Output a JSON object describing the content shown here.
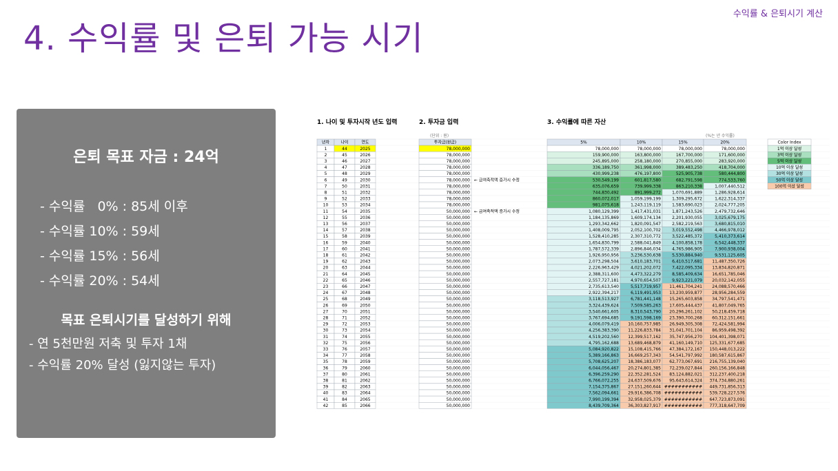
{
  "header": {
    "tag": "수익률 & 은퇴시기 계산"
  },
  "page": {
    "title": "4. 수익률 및 은퇴 가능 시기"
  },
  "summary": {
    "goal": "은퇴 목표 자금 : 24억",
    "rates": [
      "- 수익률   0% : 85세 이후",
      "- 수익률 10% : 59세",
      "- 수익률 15% : 56세",
      "- 수익률 20% : 54세"
    ],
    "action_title": "목표 은퇴시기를 달성하기 위해",
    "actions": [
      "- 연 5천만원 저축 및 투자 1채",
      "- 수익률 20% 달성 (잃지않는 투자)"
    ]
  },
  "sheet": {
    "section1_title": "1. 나이 및 투자시작 년도 입력",
    "section2_title": "2. 투자금 입력",
    "section3_title": "3. 수익률에 따른 자산",
    "unit_note": "(단위 : 원)",
    "rate_note": "(%는 년 수익률)",
    "headers": {
      "year": "년차",
      "age": "나이",
      "calendar": "연도",
      "invest": "투자금(원금)"
    },
    "rate_headers": [
      "5%",
      "10%",
      "15%",
      "20%"
    ],
    "notes": [
      {
        "row": 6,
        "text": "← 급여축적액 증가시 수정"
      },
      {
        "row": 11,
        "text": "← 급여축적액 증가시 수정"
      }
    ],
    "color_index_title": "Color Index",
    "color_index": [
      {
        "label": "1억 이상 달성",
        "color": "#d9f2e3"
      },
      {
        "label": "3억 이상 달성",
        "color": "#a9dfbf"
      },
      {
        "label": "5억 이상 달성",
        "color": "#63be7b"
      },
      {
        "label": "10억 이상 달성",
        "color": "#e3f4f4"
      },
      {
        "label": "30억 이상 달성",
        "color": "#b3e0e0"
      },
      {
        "label": "50억 이상 달성",
        "color": "#7fc8cc"
      },
      {
        "label": "100억 이상 달성",
        "color": "#f8cbad"
      }
    ],
    "start_age": 44,
    "start_year": 2025,
    "invest": [
      "78,000,000",
      "78,000,000",
      "78,000,000",
      "78,000,000",
      "78,000,000",
      "78,000,000",
      "78,000,000",
      "78,000,000",
      "78,000,000",
      "78,000,000",
      "50,000,000",
      "50,000,000",
      "50,000,000",
      "50,000,000",
      "50,000,000",
      "50,000,000",
      "50,000,000",
      "50,000,000",
      "50,000,000",
      "50,000,000",
      "50,000,000",
      "50,000,000",
      "50,000,000",
      "50,000,000",
      "50,000,000",
      "50,000,000",
      "50,000,000",
      "50,000,000",
      "50,000,000",
      "50,000,000",
      "50,000,000",
      "50,000,000",
      "50,000,000",
      "50,000,000",
      "50,000,000",
      "50,000,000",
      "50,000,000",
      "50,000,000",
      "50,000,000",
      "50,000,000",
      "50,000,000",
      "50,000,000"
    ],
    "r5": [
      "78,000,000",
      "159,900,000",
      "245,895,000",
      "336,189,750",
      "430,999,238",
      "530,549,199",
      "635,076,659",
      "744,830,492",
      "860,072,017",
      "981,075,618",
      "1,080,129,399",
      "1,184,135,869",
      "1,293,342,662",
      "1,408,009,795",
      "1,528,410,285",
      "1,654,830,799",
      "1,787,572,339",
      "1,926,950,956",
      "2,073,298,504",
      "2,226,963,429",
      "2,388,311,600",
      "2,557,727,181",
      "2,735,613,540",
      "2,922,394,217",
      "3,118,513,927",
      "3,324,439,624",
      "3,540,661,605",
      "3,767,694,685",
      "4,006,079,419",
      "4,256,383,390",
      "4,519,202,560",
      "4,795,162,688",
      "5,084,920,822",
      "5,389,166,863",
      "5,708,625,207",
      "6,044,056,467",
      "6,396,259,290",
      "6,766,072,255",
      "7,154,375,867",
      "7,562,094,661",
      "7,990,199,394",
      "8,439,709,364"
    ],
    "r10": [
      "78,000,000",
      "163,800,000",
      "258,180,000",
      "361,998,000",
      "476,197,800",
      "601,817,580",
      "739,999,338",
      "891,999,272",
      "1,059,199,199",
      "1,243,119,119",
      "1,417,431,031",
      "1,609,174,134",
      "1,820,091,547",
      "2,052,100,702",
      "2,307,310,772",
      "2,588,041,849",
      "2,896,846,034",
      "3,236,530,638",
      "3,610,183,701",
      "4,021,202,072",
      "4,473,322,279",
      "4,970,654,507",
      "5,517,719,957",
      "6,119,491,953",
      "6,781,441,148",
      "7,509,585,263",
      "8,310,543,790",
      "9,191,598,169",
      "10,160,757,985",
      "11,226,833,784",
      "12,399,517,162",
      "13,689,468,879",
      "15,108,415,766",
      "16,669,257,343",
      "18,386,183,077",
      "20,274,801,385",
      "22,352,281,524",
      "24,637,509,676",
      "27,151,260,644",
      "29,916,386,708",
      "32,958,025,379",
      "36,303,827,917"
    ],
    "r15": [
      "78,000,000",
      "167,700,000",
      "270,855,000",
      "389,483,250",
      "525,905,738",
      "682,791,598",
      "863,210,338",
      "1,070,691,889",
      "1,309,295,672",
      "1,583,690,023",
      "1,871,243,526",
      "2,201,930,055",
      "2,582,219,563",
      "3,019,552,498",
      "3,522,485,372",
      "4,100,858,178",
      "4,765,986,905",
      "5,530,884,940",
      "6,410,517,681",
      "7,422,095,334",
      "8,585,409,634",
      "9,923,221,079",
      "11,461,704,241",
      "13,230,959,877",
      "15,265,603,858",
      "17,605,444,437",
      "20,296,261,102",
      "23,390,700,268",
      "26,949,305,308",
      "31,041,701,104",
      "35,747,956,270",
      "41,160,149,710",
      "47,384,172,167",
      "54,541,797,992",
      "62,773,067,691",
      "72,239,027,844",
      "83,124,882,021",
      "95,643,614,324",
      "###########",
      "###########",
      "###########",
      "###########"
    ],
    "r20": [
      "78,000,000",
      "171,600,000",
      "283,920,000",
      "418,704,000",
      "580,444,800",
      "774,533,760",
      "1,007,440,512",
      "1,286,928,614",
      "1,622,314,337",
      "2,024,777,205",
      "2,479,732,646",
      "3,025,679,175",
      "3,680,815,010",
      "4,466,978,012",
      "5,410,373,614",
      "6,542,448,337",
      "7,900,938,004",
      "9,531,125,605",
      "11,487,350,726",
      "13,834,820,871",
      "16,651,785,046",
      "20,032,142,055",
      "24,088,570,466",
      "28,956,284,559",
      "34,797,541,471",
      "41,807,049,765",
      "50,218,459,718",
      "60,312,151,661",
      "72,424,581,994",
      "86,959,498,392",
      "104,401,398,071",
      "125,331,677,685",
      "150,448,013,222",
      "180,587,615,867",
      "216,755,139,040",
      "260,156,166,848",
      "312,237,400,218",
      "374,734,880,261",
      "449,731,856,313",
      "539,728,227,576",
      "647,723,873,091",
      "777,318,647,709"
    ]
  }
}
